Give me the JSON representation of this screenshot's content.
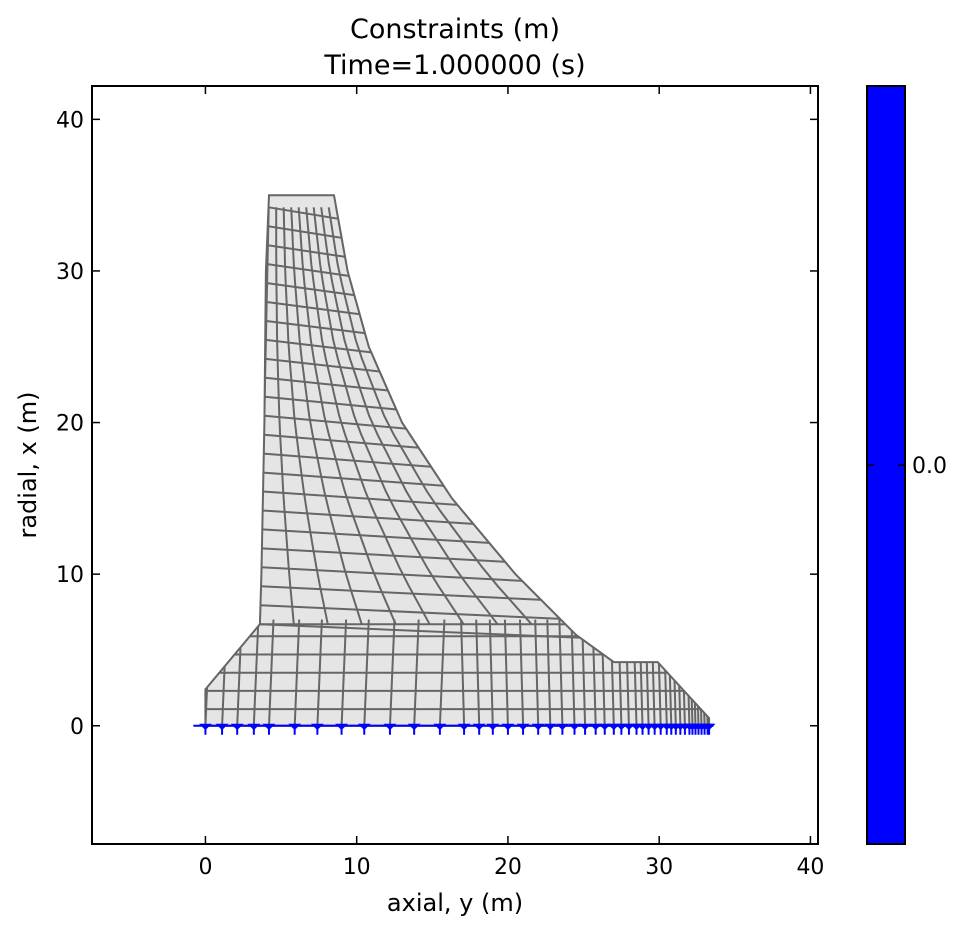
{
  "chart_data": {
    "type": "mesh",
    "title": "Constraints  (m)",
    "subtitle": "Time=1.000000 (s)",
    "xlabel": "axial, y (m)",
    "ylabel": "radial, x (m)",
    "xlim": [
      -7.5,
      40.5
    ],
    "ylim": [
      -7.8,
      42.2
    ],
    "xticks": [
      0,
      10,
      20,
      30,
      40
    ],
    "yticks": [
      0,
      10,
      20,
      30,
      40
    ],
    "colorbar": {
      "ticks": [
        {
          "value": 0.0,
          "label": "0.0"
        }
      ],
      "color": "#0000ff"
    },
    "mesh_color": "#666666",
    "mesh_fill": "#e5e5e5",
    "boundary": [
      [
        4.2,
        35
      ],
      [
        8.5,
        35
      ],
      [
        9.4,
        30
      ],
      [
        10.8,
        25
      ],
      [
        13,
        20
      ],
      [
        16.3,
        15
      ],
      [
        20.5,
        10
      ],
      [
        24.5,
        6
      ],
      [
        27,
        4.2
      ],
      [
        29.9,
        4.2
      ],
      [
        33.3,
        0.5
      ],
      [
        33.3,
        0
      ],
      [
        0,
        0
      ],
      [
        0,
        2.4
      ],
      [
        3.6,
        6.7
      ],
      [
        3.7,
        10
      ],
      [
        3.9,
        20
      ],
      [
        4.0,
        30
      ]
    ],
    "constraint_color": "#0000ff",
    "constraint_y": [
      0.0,
      1.1,
      2.1,
      3.2,
      4.2,
      5.9,
      7.4,
      9.0,
      10.5,
      12.2,
      13.8,
      15.5,
      17.1,
      18.1,
      19.0,
      20.0,
      21.0,
      22.0,
      22.8,
      23.6,
      24.4,
      25.1,
      25.8,
      26.4,
      27.0,
      27.5,
      28.0,
      28.5,
      28.9,
      29.3,
      29.7,
      30.1,
      30.5,
      30.8,
      31.1,
      31.4,
      31.7,
      32.0,
      32.2,
      32.4,
      32.6,
      32.8,
      33.0,
      33.2,
      33.3
    ]
  }
}
